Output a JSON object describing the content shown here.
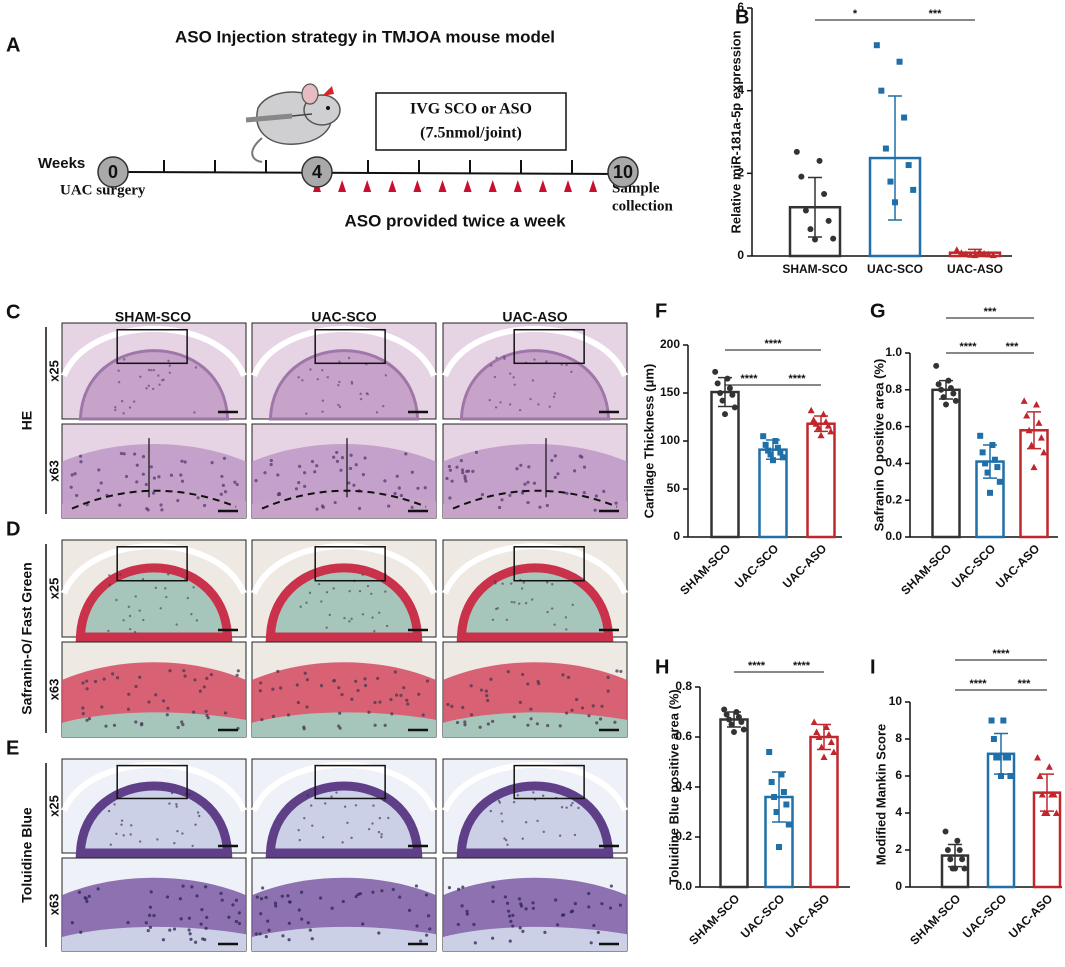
{
  "timeline": {
    "label": "A",
    "title": "ASO Injection strategy in TMJOA mouse model",
    "axis_label": "Weeks",
    "milestones": [
      0,
      4,
      10
    ],
    "surgery": "UAC surgery",
    "treatment": [
      "IVG SCO or ASO",
      "(7.5nmol/joint)"
    ],
    "collection": [
      "Sample",
      "collection"
    ],
    "schedule": "ASO provided twice a week"
  },
  "histology": {
    "columns": [
      "SHAM-SCO",
      "UAC-SCO",
      "UAC-ASO"
    ],
    "magnifications": [
      "x25",
      "x63"
    ],
    "rows": [
      {
        "label": "C",
        "stain": "HE"
      },
      {
        "label": "D",
        "stain": "Safranin-O/ Fast Green"
      },
      {
        "label": "E",
        "stain": "Toluidine Blue"
      }
    ]
  },
  "chart_data": [
    {
      "type": "bar",
      "label": "B",
      "ylabel": "Relative miR-181a-5p expression",
      "categories": [
        "SHAM-SCO",
        "UAC-SCO",
        "UAC-ASO"
      ],
      "colors": [
        "#333333",
        "#1f6fa8",
        "#c0272d"
      ],
      "values": [
        1.18,
        2.37,
        0.08
      ],
      "errors": [
        0.72,
        1.5,
        0.08
      ],
      "points": [
        [
          2.52,
          2.3,
          1.92,
          1.5,
          1.1,
          0.85,
          0.65,
          0.42,
          0.4
        ],
        [
          5.1,
          4.7,
          4.0,
          3.35,
          2.6,
          2.2,
          1.8,
          1.6,
          1.3
        ],
        [
          0.15,
          0.1,
          0.08,
          0.06,
          0.05,
          0.04,
          0.03,
          0.02,
          0.02
        ]
      ],
      "ylim": [
        0,
        6
      ],
      "yticks": [
        0,
        2,
        4,
        6
      ],
      "significance": [
        {
          "between": [
            "SHAM-SCO",
            "UAC-SCO"
          ],
          "label": "*"
        },
        {
          "between": [
            "UAC-SCO",
            "UAC-ASO"
          ],
          "label": "***"
        }
      ]
    },
    {
      "type": "bar",
      "label": "F",
      "ylabel": "Cartilage Thickness (μm)",
      "categories": [
        "SHAM-SCO",
        "UAC-SCO",
        "UAC-ASO"
      ],
      "colors": [
        "#333333",
        "#1f6fa8",
        "#c0272d"
      ],
      "values": [
        151,
        91,
        118
      ],
      "errors": [
        15,
        10,
        8
      ],
      "points": [
        [
          172,
          165,
          160,
          155,
          150,
          148,
          142,
          135,
          128
        ],
        [
          105,
          100,
          96,
          93,
          90,
          88,
          86,
          83,
          80
        ],
        [
          132,
          128,
          122,
          120,
          118,
          116,
          114,
          110,
          106
        ]
      ],
      "ylim": [
        0,
        200
      ],
      "yticks": [
        0,
        50,
        100,
        150,
        200
      ],
      "significance": [
        {
          "between": [
            "SHAM-SCO",
            "UAC-ASO"
          ],
          "label": "****"
        },
        {
          "between": [
            "SHAM-SCO",
            "UAC-SCO"
          ],
          "label": "****"
        },
        {
          "between": [
            "UAC-SCO",
            "UAC-ASO"
          ],
          "label": "****"
        }
      ]
    },
    {
      "type": "bar",
      "label": "G",
      "ylabel": "Safranin O positive area (%)",
      "categories": [
        "SHAM-SCO",
        "UAC-SCO",
        "UAC-ASO"
      ],
      "colors": [
        "#333333",
        "#1f6fa8",
        "#c0272d"
      ],
      "values": [
        0.8,
        0.41,
        0.58
      ],
      "errors": [
        0.05,
        0.09,
        0.1
      ],
      "points": [
        [
          0.93,
          0.85,
          0.83,
          0.81,
          0.8,
          0.78,
          0.76,
          0.74,
          0.72
        ],
        [
          0.55,
          0.5,
          0.46,
          0.42,
          0.4,
          0.38,
          0.35,
          0.3,
          0.24
        ],
        [
          0.74,
          0.72,
          0.66,
          0.62,
          0.58,
          0.54,
          0.5,
          0.46,
          0.38
        ]
      ],
      "ylim": [
        0,
        1
      ],
      "yticks": [
        {
          "value": 0,
          "label": "0.0"
        },
        0.2,
        0.4,
        0.6,
        0.8,
        {
          "value": 1,
          "label": "1.0"
        }
      ],
      "significance": [
        {
          "between": [
            "SHAM-SCO",
            "UAC-ASO"
          ],
          "label": "***"
        },
        {
          "between": [
            "SHAM-SCO",
            "UAC-SCO"
          ],
          "label": "****"
        },
        {
          "between": [
            "UAC-SCO",
            "UAC-ASO"
          ],
          "label": "***"
        }
      ]
    },
    {
      "type": "bar",
      "label": "H",
      "ylabel": "Toluidine Blue positive area (%)",
      "categories": [
        "SHAM-SCO",
        "UAC-SCO",
        "UAC-ASO"
      ],
      "colors": [
        "#333333",
        "#1f6fa8",
        "#c0272d"
      ],
      "values": [
        0.67,
        0.36,
        0.6
      ],
      "errors": [
        0.03,
        0.1,
        0.05
      ],
      "points": [
        [
          0.71,
          0.7,
          0.69,
          0.68,
          0.67,
          0.66,
          0.65,
          0.63,
          0.62
        ],
        [
          0.54,
          0.45,
          0.42,
          0.38,
          0.36,
          0.33,
          0.3,
          0.25,
          0.16
        ],
        [
          0.66,
          0.64,
          0.62,
          0.61,
          0.6,
          0.58,
          0.56,
          0.54,
          0.52
        ]
      ],
      "ylim": [
        0,
        0.8
      ],
      "yticks": [
        {
          "value": 0,
          "label": "0.0"
        },
        0.2,
        0.4,
        0.6,
        0.8
      ],
      "significance": [
        {
          "between": [
            "SHAM-SCO",
            "UAC-SCO"
          ],
          "label": "****"
        },
        {
          "between": [
            "UAC-SCO",
            "UAC-ASO"
          ],
          "label": "****"
        }
      ]
    },
    {
      "type": "bar",
      "label": "I",
      "ylabel": "Modified Mankin Score",
      "categories": [
        "SHAM-SCO",
        "UAC-SCO",
        "UAC-ASO"
      ],
      "colors": [
        "#333333",
        "#1f6fa8",
        "#c0272d"
      ],
      "values": [
        1.7,
        7.2,
        5.1
      ],
      "errors": [
        0.6,
        1.1,
        1.0
      ],
      "points": [
        [
          3,
          2.5,
          2,
          2,
          1.5,
          1.5,
          1,
          1,
          1
        ],
        [
          9,
          9,
          8,
          7,
          7,
          7,
          7,
          6,
          6
        ],
        [
          7,
          6.5,
          6,
          5,
          5,
          5,
          4,
          4,
          4
        ]
      ],
      "ylim": [
        0,
        10
      ],
      "yticks": [
        0,
        2,
        4,
        6,
        8,
        10
      ],
      "significance": [
        {
          "between": [
            "SHAM-SCO",
            "UAC-ASO"
          ],
          "label": "****"
        },
        {
          "between": [
            "SHAM-SCO",
            "UAC-SCO"
          ],
          "label": "****"
        },
        {
          "between": [
            "UAC-SCO",
            "UAC-ASO"
          ],
          "label": "***"
        }
      ]
    }
  ]
}
